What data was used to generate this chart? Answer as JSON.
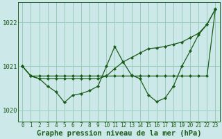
{
  "xlabel": "Graphe pression niveau de la mer (hPa)",
  "bg_color": "#cde8e8",
  "grid_color": "#99ccbb",
  "line_color": "#1a5c1a",
  "marker_color": "#1a5c1a",
  "ylim": [
    1019.75,
    1022.45
  ],
  "xlim": [
    -0.5,
    23.5
  ],
  "yticks": [
    1020,
    1021,
    1022
  ],
  "xticks": [
    0,
    1,
    2,
    3,
    4,
    5,
    6,
    7,
    8,
    9,
    10,
    11,
    12,
    13,
    14,
    15,
    16,
    17,
    18,
    19,
    20,
    21,
    22,
    23
  ],
  "series_flat": [
    1021.0,
    1020.78,
    1020.78,
    1020.78,
    1020.78,
    1020.78,
    1020.78,
    1020.78,
    1020.78,
    1020.78,
    1020.78,
    1020.78,
    1020.78,
    1020.78,
    1020.78,
    1020.78,
    1020.78,
    1020.78,
    1020.78,
    1020.78,
    1020.78,
    1020.78,
    1020.78,
    1022.3
  ],
  "series_dip": [
    1021.0,
    1020.78,
    1020.72,
    1020.55,
    1020.42,
    1020.18,
    1020.35,
    1020.38,
    1020.45,
    1020.55,
    1021.0,
    1021.45,
    1021.1,
    1020.8,
    1020.72,
    1020.35,
    1020.2,
    1020.28,
    1020.55,
    1021.0,
    1021.35,
    1021.72,
    1021.95,
    1022.3
  ],
  "series_rise": [
    1021.0,
    1020.78,
    1020.72,
    1020.72,
    1020.72,
    1020.72,
    1020.72,
    1020.72,
    1020.72,
    1020.72,
    1020.78,
    1020.95,
    1021.1,
    1021.2,
    1021.3,
    1021.4,
    1021.42,
    1021.45,
    1021.5,
    1021.55,
    1021.65,
    1021.75,
    1021.95,
    1022.3
  ],
  "xlabel_fontsize": 7.5,
  "tick_fontsize": 6.5,
  "label_color": "#1a5c1a"
}
